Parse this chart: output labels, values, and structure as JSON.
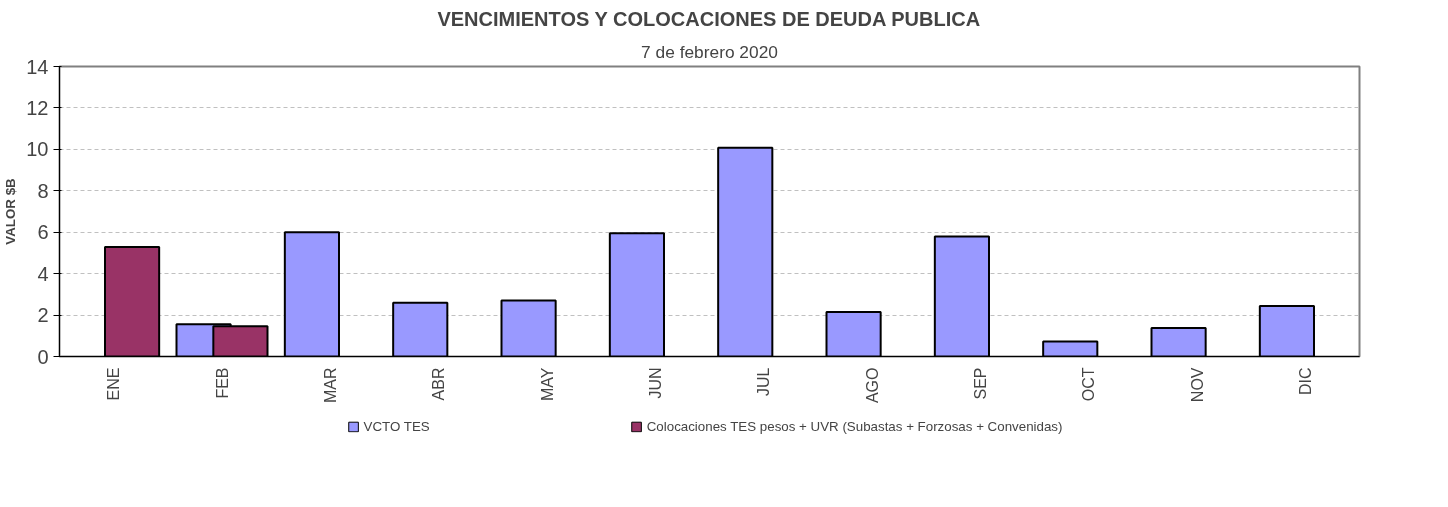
{
  "chart_data": {
    "type": "bar",
    "title": "VENCIMIENTOS Y COLOCACIONES DE DEUDA PUBLICA",
    "subtitle": "7 de febrero 2020",
    "ylabel": "VALOR $B",
    "categories": [
      "ENE",
      "FEB",
      "MAR",
      "ABR",
      "MAY",
      "JUN",
      "JUL",
      "AGO",
      "SEP",
      "OCT",
      "NOV",
      "DIC"
    ],
    "series": [
      {
        "name": "VCTO TES",
        "color": "#9999ff",
        "values": [
          null,
          1.56,
          6.0,
          2.59,
          2.7,
          5.95,
          10.08,
          2.15,
          5.79,
          0.73,
          1.38,
          2.44
        ]
      },
      {
        "name": "Colocaciones TES pesos + UVR (Subastas + Forzosas + Convenidas)",
        "color": "#993366",
        "values": [
          5.29,
          1.46,
          null,
          null,
          null,
          null,
          null,
          null,
          null,
          null,
          null,
          null
        ]
      }
    ],
    "ylim": [
      0,
      14
    ],
    "yticks": [
      0,
      2,
      4,
      6,
      8,
      10,
      12,
      14
    ],
    "grid": "y",
    "legend": "bottom"
  }
}
